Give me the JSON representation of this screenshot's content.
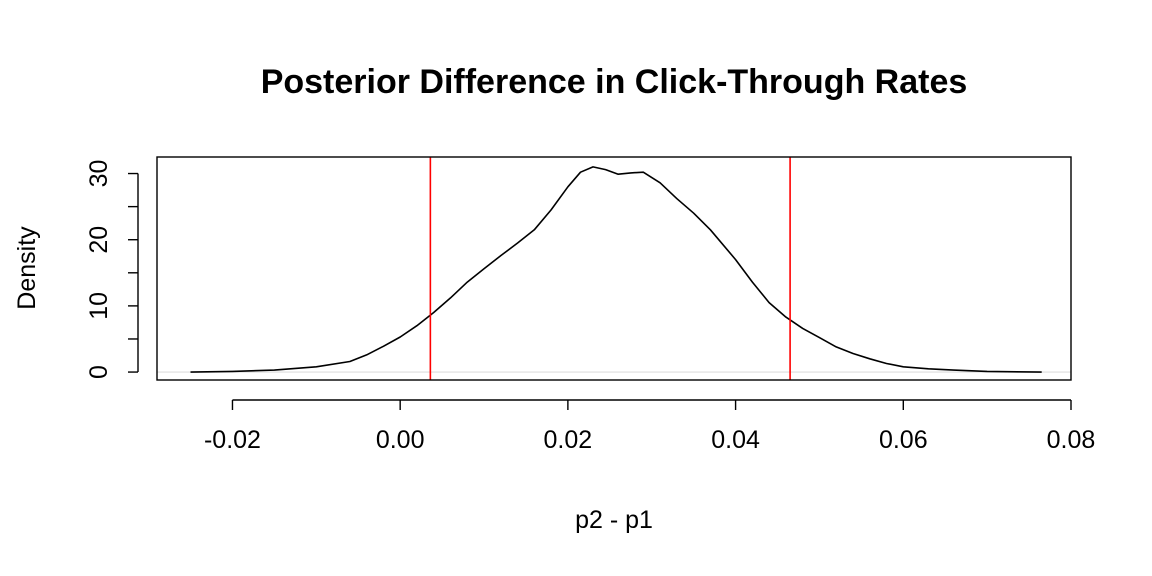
{
  "chart_data": {
    "type": "line",
    "title": "Posterior Difference in Click-Through Rates",
    "xlabel": "p2 - p1",
    "ylabel": "Density",
    "xlim": [
      -0.029,
      0.08
    ],
    "ylim": [
      -1.2,
      32.5
    ],
    "x_ticks": [
      -0.02,
      0.0,
      0.02,
      0.04,
      0.06,
      0.08
    ],
    "x_tick_labels": [
      "-0.02",
      "0.00",
      "0.02",
      "0.04",
      "0.06",
      "0.08"
    ],
    "y_ticks": [
      0,
      5,
      10,
      15,
      20,
      25,
      30
    ],
    "y_tick_labels": [
      "0",
      "",
      "10",
      "",
      "20",
      "",
      "30"
    ],
    "grid": false,
    "legend": "none",
    "zero_line_color": "#dddddd",
    "series": [
      {
        "color": "#000000",
        "x": [
          -0.025,
          -0.02,
          -0.015,
          -0.01,
          -0.006,
          -0.004,
          -0.002,
          0.0,
          0.002,
          0.004,
          0.006,
          0.008,
          0.01,
          0.012,
          0.014,
          0.016,
          0.018,
          0.02,
          0.0215,
          0.023,
          0.0245,
          0.026,
          0.0275,
          0.029,
          0.031,
          0.033,
          0.035,
          0.037,
          0.04,
          0.042,
          0.044,
          0.046,
          0.048,
          0.05,
          0.052,
          0.054,
          0.056,
          0.058,
          0.06,
          0.063,
          0.066,
          0.07,
          0.0765
        ],
        "y": [
          0.0,
          0.1,
          0.3,
          0.8,
          1.6,
          2.6,
          3.9,
          5.3,
          7.0,
          9.0,
          11.2,
          13.6,
          15.6,
          17.6,
          19.5,
          21.5,
          24.5,
          28.0,
          30.2,
          31.0,
          30.6,
          29.9,
          30.1,
          30.2,
          28.6,
          26.2,
          24.0,
          21.5,
          17.0,
          13.6,
          10.5,
          8.3,
          6.6,
          5.2,
          3.8,
          2.8,
          2.0,
          1.3,
          0.8,
          0.5,
          0.3,
          0.1,
          0.0
        ]
      }
    ],
    "vertical_lines": [
      {
        "x": 0.0036,
        "color": "#ff0000"
      },
      {
        "x": 0.0465,
        "color": "#ff0000"
      }
    ]
  }
}
